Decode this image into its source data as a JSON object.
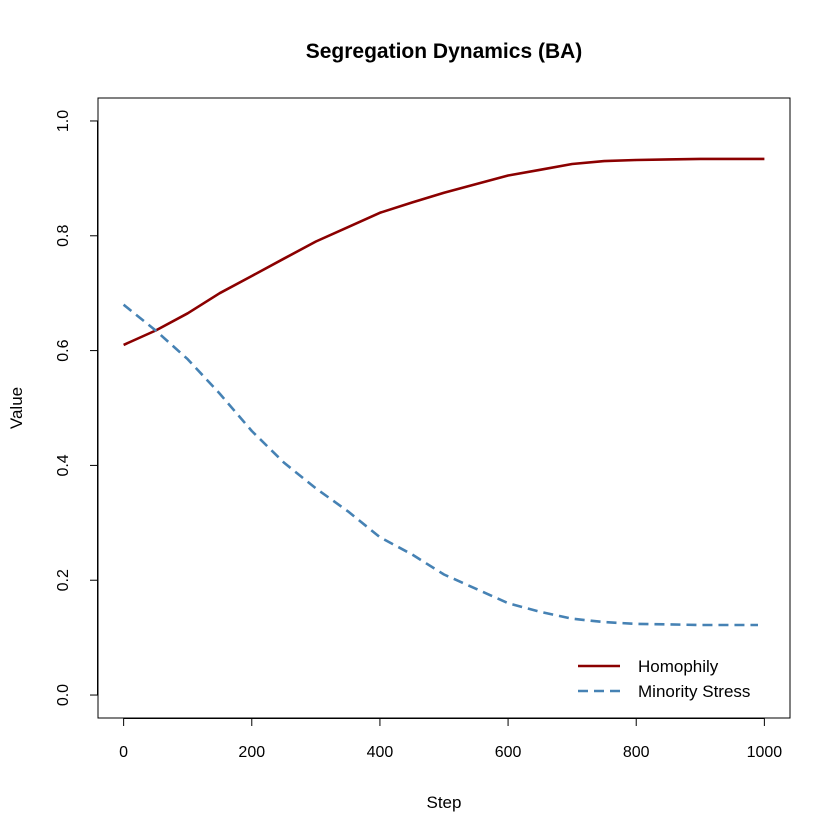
{
  "chart_data": {
    "type": "line",
    "title": "Segregation Dynamics (BA)",
    "xlabel": "Step",
    "ylabel": "Value",
    "xlim": [
      -40,
      1040
    ],
    "ylim": [
      -0.04,
      1.04
    ],
    "xticks": [
      0,
      200,
      400,
      600,
      800,
      1000
    ],
    "yticks": [
      0.0,
      0.2,
      0.4,
      0.6,
      0.8,
      1.0
    ],
    "xtick_labels": [
      "0",
      "200",
      "400",
      "600",
      "800",
      "1000"
    ],
    "ytick_labels": [
      "0.0",
      "0.2",
      "0.4",
      "0.6",
      "0.8",
      "1.0"
    ],
    "grid": false,
    "legend_position": "bottom-right",
    "series": [
      {
        "name": "Homophily",
        "color": "#8B0000",
        "style": "solid",
        "x": [
          0,
          50,
          100,
          150,
          200,
          250,
          300,
          350,
          400,
          450,
          500,
          550,
          600,
          650,
          700,
          750,
          800,
          850,
          900,
          950,
          1000
        ],
        "y": [
          0.61,
          0.635,
          0.665,
          0.7,
          0.73,
          0.76,
          0.79,
          0.815,
          0.84,
          0.858,
          0.875,
          0.89,
          0.905,
          0.915,
          0.925,
          0.93,
          0.932,
          0.933,
          0.934,
          0.934,
          0.934
        ]
      },
      {
        "name": "Minority Stress",
        "color": "#4682B4",
        "style": "dashed",
        "x": [
          0,
          50,
          100,
          150,
          200,
          250,
          300,
          350,
          400,
          450,
          500,
          550,
          600,
          650,
          700,
          750,
          800,
          850,
          900,
          950,
          990
        ],
        "y": [
          0.68,
          0.635,
          0.585,
          0.525,
          0.46,
          0.405,
          0.36,
          0.32,
          0.275,
          0.245,
          0.21,
          0.185,
          0.16,
          0.145,
          0.133,
          0.127,
          0.124,
          0.123,
          0.122,
          0.122,
          0.122
        ]
      }
    ]
  }
}
